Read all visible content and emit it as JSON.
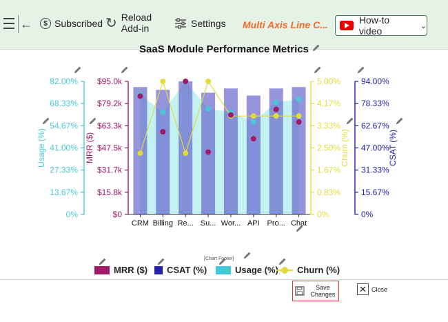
{
  "toolbar": {
    "subscribed_label": "Subscribed",
    "reload_label": "Reload Add-in",
    "settings_label": "Settings",
    "brand": "Multi Axis Line C...",
    "howto_label": "How-to video"
  },
  "chart_footer": "[Chart Footer]",
  "buttons": {
    "save_label": "Save Changes",
    "close_label": "Close"
  },
  "colors": {
    "mrr": "#9e1b6a",
    "csat": "#2222aa",
    "usage": "#46c9d6",
    "churn": "#e2dc3a",
    "brand": "#ee6b2f"
  },
  "chart_data": {
    "type": "bar",
    "title": "SaaS Module Performance Metrics",
    "categories": [
      "CRM",
      "Billing",
      "Re...",
      "Su...",
      "Wor...",
      "API",
      "Pro...",
      "Chat"
    ],
    "series": [
      {
        "name": "MRR ($)",
        "kind": "dots",
        "axis": "mrr",
        "values": [
          84500,
          59000,
          95000,
          44500,
          71000,
          54000,
          75000,
          66000
        ]
      },
      {
        "name": "CSAT (%)",
        "kind": "bars",
        "axis": "csat",
        "values": [
          90,
          88,
          94,
          86,
          89,
          84,
          89,
          90
        ]
      },
      {
        "name": "Usage (%)",
        "kind": "area",
        "axis": "usage",
        "values": [
          74,
          63,
          82,
          65,
          63,
          57,
          69,
          71
        ]
      },
      {
        "name": "Churn (%)",
        "kind": "line",
        "axis": "churn",
        "values": [
          2.3,
          5.0,
          2.3,
          5.0,
          3.7,
          3.7,
          3.7,
          3.7
        ]
      }
    ],
    "axes": {
      "usage": {
        "label": "Usage (%)",
        "range": [
          0,
          82
        ],
        "ticks": [
          "0%",
          "13.67%",
          "27.33%",
          "41.00%",
          "54.67%",
          "68.33%",
          "82.00%"
        ]
      },
      "mrr": {
        "label": "MRR ($)",
        "range": [
          0,
          95000
        ],
        "ticks": [
          "$0",
          "$15.8k",
          "$31.7k",
          "$47.5k",
          "$63.3k",
          "$79.2k",
          "$95.0k"
        ]
      },
      "churn": {
        "label": "Churn (%)",
        "range": [
          0,
          5
        ],
        "ticks": [
          "0%",
          "0.83%",
          "1.67%",
          "2.50%",
          "3.33%",
          "4.17%",
          "5.00%"
        ]
      },
      "csat": {
        "label": "CSAT (%)",
        "range": [
          0,
          94
        ],
        "ticks": [
          "0%",
          "15.67%",
          "31.33%",
          "47.00%",
          "62.67%",
          "78.33%",
          "94.00%"
        ]
      }
    },
    "legend_position": "bottom",
    "grid": false
  }
}
